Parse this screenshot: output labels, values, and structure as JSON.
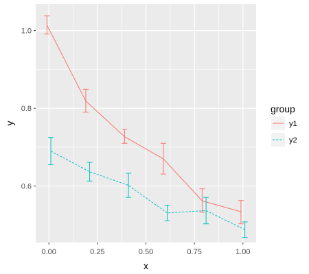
{
  "chart_data": {
    "type": "line",
    "xlabel": "x",
    "ylabel": "y",
    "xlim": [
      -0.068,
      1.068
    ],
    "ylim": [
      0.455,
      1.068
    ],
    "x_ticks": [
      0.0,
      0.25,
      0.5,
      0.75,
      1.0
    ],
    "x_tick_labels": [
      "0.00",
      "0.25",
      "0.50",
      "0.75",
      "1.00"
    ],
    "y_ticks": [
      0.6,
      0.8,
      1.0
    ],
    "y_tick_labels": [
      "0.6",
      "0.8",
      "1.0"
    ],
    "grid": true,
    "legend": {
      "title": "group",
      "placement": "right"
    },
    "series": [
      {
        "name": "y1",
        "color": "#F8766D",
        "linetype": "solid",
        "x_offset": -0.01,
        "x": [
          0.0,
          0.2,
          0.4,
          0.6,
          0.8,
          1.0
        ],
        "y": [
          1.014,
          0.819,
          0.727,
          0.67,
          0.562,
          0.534
        ],
        "err_low": [
          0.991,
          0.79,
          0.71,
          0.631,
          0.533,
          0.503
        ],
        "err_high": [
          1.038,
          0.849,
          0.746,
          0.71,
          0.593,
          0.563
        ]
      },
      {
        "name": "y2",
        "color": "#00BFC4",
        "linetype": "dashed",
        "x_offset": 0.01,
        "x": [
          0.0,
          0.2,
          0.4,
          0.6,
          0.8,
          1.0
        ],
        "y": [
          0.69,
          0.637,
          0.602,
          0.531,
          0.537,
          0.488
        ],
        "err_low": [
          0.655,
          0.613,
          0.571,
          0.511,
          0.503,
          0.468
        ],
        "err_high": [
          0.725,
          0.661,
          0.633,
          0.551,
          0.571,
          0.508
        ]
      }
    ]
  }
}
